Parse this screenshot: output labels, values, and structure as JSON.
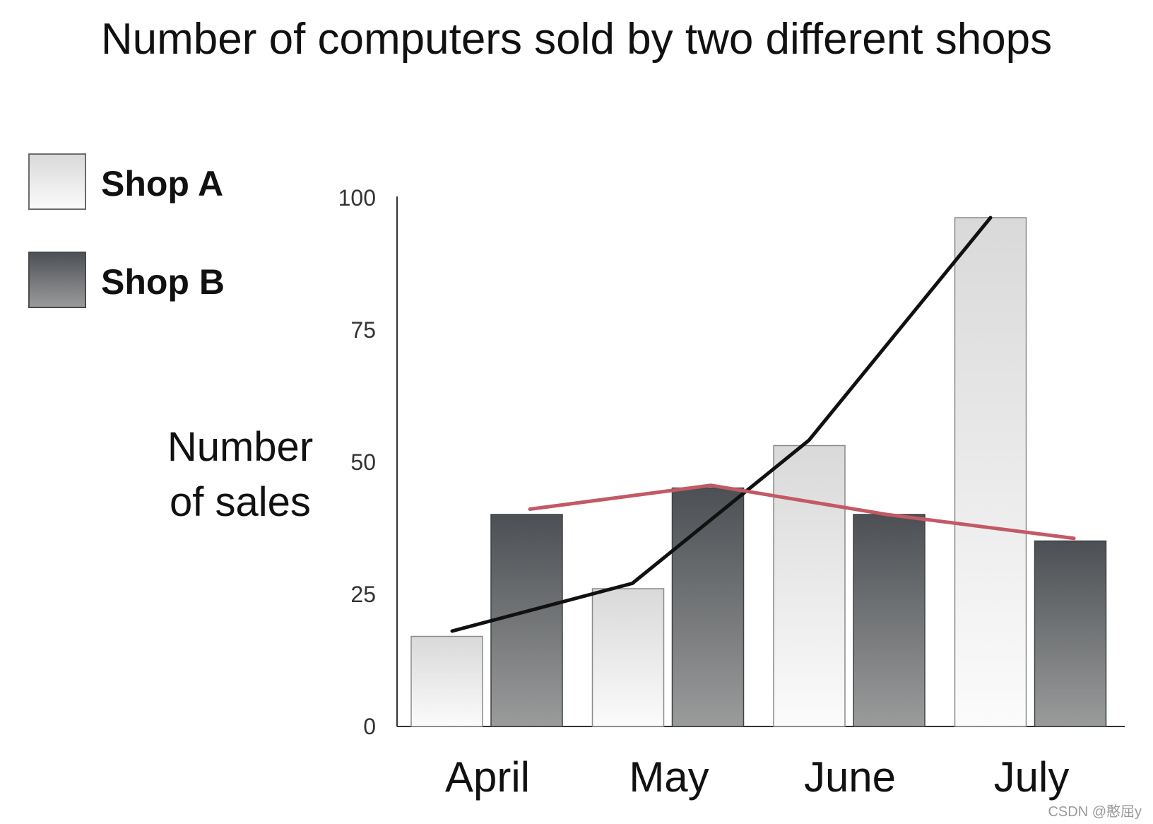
{
  "chart_data": {
    "type": "bar",
    "title": "Number of computers sold by two different shops",
    "xlabel": "",
    "ylabel": "Number\nof sales",
    "ylabel_lines": [
      "Number",
      "of sales"
    ],
    "categories": [
      "April",
      "May",
      "June",
      "July"
    ],
    "series": [
      {
        "name": "Shop A",
        "values": [
          17,
          26,
          53,
          96
        ],
        "color": "#e6e6e6"
      },
      {
        "name": "Shop B",
        "values": [
          40,
          45,
          40,
          35
        ],
        "color": "#5c6064"
      }
    ],
    "overlay_lines": [
      {
        "series": "Shop A",
        "color": "#111111",
        "points": [
          18,
          27,
          54,
          96
        ]
      },
      {
        "series": "Shop B",
        "color": "#c25a66",
        "points": [
          41,
          45.5,
          40,
          35.5
        ]
      }
    ],
    "ylim": [
      0,
      100
    ],
    "yticks": [
      0,
      25,
      50,
      75,
      100
    ],
    "grid": false,
    "legend_position": "top-left"
  },
  "watermark": "CSDN @憨屈y"
}
